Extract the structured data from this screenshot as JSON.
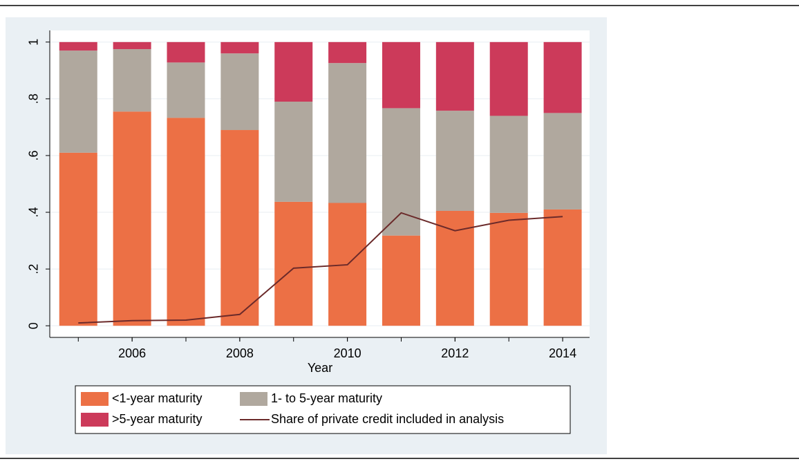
{
  "chart_data": {
    "type": "bar",
    "stacked": true,
    "xlabel": "Year",
    "x": [
      2005,
      2006,
      2007,
      2008,
      2009,
      2010,
      2011,
      2012,
      2013,
      2014
    ],
    "series": [
      {
        "name": "<1-year maturity",
        "type": "bar",
        "color": "#ec7045",
        "values": [
          0.61,
          0.755,
          0.733,
          0.69,
          0.437,
          0.433,
          0.318,
          0.405,
          0.398,
          0.41
        ]
      },
      {
        "name": "1- to 5-year maturity",
        "type": "bar",
        "color": "#b0a89e",
        "values": [
          0.36,
          0.22,
          0.195,
          0.27,
          0.353,
          0.493,
          0.449,
          0.353,
          0.342,
          0.34
        ]
      },
      {
        "name": ">5-year maturity",
        "type": "bar",
        "color": "#cc3a5a",
        "values": [
          0.03,
          0.025,
          0.072,
          0.04,
          0.21,
          0.074,
          0.233,
          0.242,
          0.26,
          0.25
        ]
      },
      {
        "name": "Share of private credit included in analysis",
        "type": "line",
        "color": "#6b2a2a",
        "values": [
          0.01,
          0.018,
          0.02,
          0.04,
          0.203,
          0.215,
          0.398,
          0.335,
          0.372,
          0.385
        ]
      }
    ],
    "xlim": [
      2004.47,
      2014.5
    ],
    "xticks": [
      2006,
      2008,
      2010,
      2012,
      2014
    ],
    "ylim": [
      -0.041,
      1.041
    ],
    "yticks": [
      0,
      {
        "value": 0.2,
        "label": ".2"
      },
      {
        "value": 0.4,
        "label": ".4"
      },
      {
        "value": 0.6,
        "label": ".6"
      },
      {
        "value": 0.8,
        "label": ".8"
      },
      1
    ],
    "grid": true
  }
}
